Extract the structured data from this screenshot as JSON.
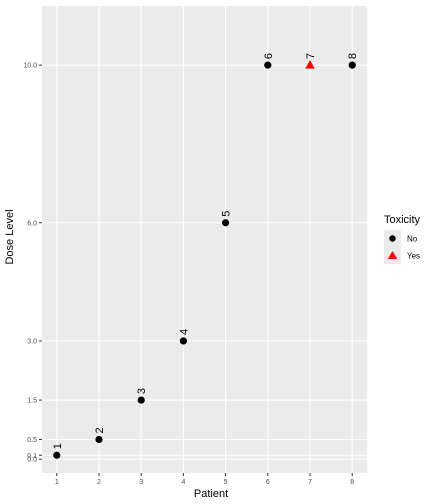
{
  "chart_data": {
    "type": "scatter",
    "xlabel": "Patient",
    "ylabel": "Dose Level",
    "x_ticks": [
      1,
      2,
      3,
      4,
      5,
      6,
      7,
      8
    ],
    "x_tick_labels": [
      "1",
      "2",
      "3",
      "4",
      "5",
      "6",
      "7",
      "8"
    ],
    "y_ticks": [
      0.0,
      0.1,
      0.5,
      1.5,
      3.0,
      6.0,
      10.0
    ],
    "y_tick_labels": [
      "0.0",
      "0.1",
      "0.5",
      "1.5",
      "3.0",
      "6.0",
      "10.0"
    ],
    "xlim": [
      0.65,
      8.35
    ],
    "ylim": [
      -0.35,
      11.5
    ],
    "grid": true,
    "legend": {
      "title": "Toxicity",
      "position": "right",
      "entries": [
        {
          "label": "No",
          "shape": "circle",
          "color": "#000000"
        },
        {
          "label": "Yes",
          "shape": "triangle",
          "color": "#ff0000"
        }
      ]
    },
    "points": [
      {
        "x": 1,
        "y": 0.1,
        "label": "1",
        "toxicity": "No"
      },
      {
        "x": 2,
        "y": 0.5,
        "label": "2",
        "toxicity": "No"
      },
      {
        "x": 3,
        "y": 1.5,
        "label": "3",
        "toxicity": "No"
      },
      {
        "x": 4,
        "y": 3.0,
        "label": "4",
        "toxicity": "No"
      },
      {
        "x": 5,
        "y": 6.0,
        "label": "5",
        "toxicity": "No"
      },
      {
        "x": 6,
        "y": 10.0,
        "label": "6",
        "toxicity": "No"
      },
      {
        "x": 7,
        "y": 10.0,
        "label": "7",
        "toxicity": "Yes"
      },
      {
        "x": 8,
        "y": 10.0,
        "label": "8",
        "toxicity": "No"
      }
    ]
  }
}
